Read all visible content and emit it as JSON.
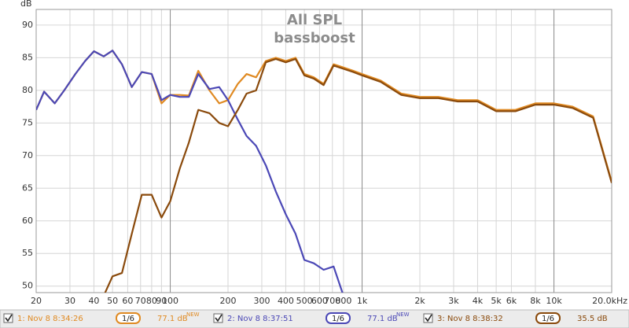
{
  "chart_data": {
    "type": "line",
    "title": "All SPL",
    "subtitle": "bassboost",
    "y_label": "dB",
    "x_scale": "log",
    "grid": true,
    "xlim": [
      20,
      20000
    ],
    "ylim": [
      49,
      92.4
    ],
    "xticks": [
      20,
      30,
      40,
      50,
      60,
      70,
      80,
      90,
      100,
      200,
      300,
      400,
      500,
      600,
      700,
      800,
      {
        "value": 1000,
        "label": "1k"
      },
      {
        "value": 2000,
        "label": "2k"
      },
      {
        "value": 3000,
        "label": "3k"
      },
      {
        "value": 4000,
        "label": "4k"
      },
      {
        "value": 5000,
        "label": "5k"
      },
      {
        "value": 6000,
        "label": "6k"
      },
      {
        "value": 8000,
        "label": "8k"
      },
      {
        "value": 10000,
        "label": "10k"
      },
      {
        "value": 20000,
        "label": "20.0kHz"
      }
    ],
    "yticks": [
      50,
      55,
      60,
      65,
      70,
      75,
      80,
      85,
      90
    ],
    "x": [
      20,
      22,
      25,
      28,
      32,
      36,
      40,
      45,
      50,
      56,
      63,
      71,
      80,
      90,
      100,
      112,
      125,
      140,
      160,
      180,
      200,
      225,
      250,
      280,
      315,
      355,
      400,
      450,
      500,
      560,
      630,
      710,
      800,
      900,
      1000,
      1250,
      1600,
      2000,
      2500,
      3150,
      4000,
      5000,
      6300,
      8000,
      10000,
      12500,
      16000,
      20000
    ],
    "series": [
      {
        "name": "1: Nov 8 8:34:26",
        "smoothing": "1/6",
        "level": "77.1 dB",
        "badge": "NEW",
        "color": "#e08a22",
        "values": [
          77,
          79.8,
          78,
          80,
          82.5,
          84.5,
          86,
          85.2,
          86.1,
          84,
          80.5,
          82.8,
          82.5,
          78,
          79.3,
          79.3,
          79.2,
          83,
          80,
          78,
          78.5,
          81,
          82.5,
          82,
          84.5,
          85,
          84.5,
          85,
          82.5,
          82,
          81,
          84,
          83.5,
          83,
          82.5,
          81.5,
          79.5,
          79,
          79,
          78.5,
          78.5,
          77,
          77,
          78,
          78,
          77.5,
          76,
          66
        ]
      },
      {
        "name": "2: Nov 8 8:37:51",
        "smoothing": "1/6",
        "level": "77.1 dB",
        "badge": "NEW",
        "color": "#4b48b6",
        "values": [
          77,
          79.8,
          78,
          80,
          82.5,
          84.5,
          86,
          85.2,
          86.1,
          84,
          80.5,
          82.8,
          82.5,
          78.5,
          79.3,
          79,
          79,
          82.5,
          80.2,
          80.5,
          78.5,
          75.5,
          73,
          71.5,
          68.5,
          64.5,
          61,
          58,
          54,
          53.5,
          52.5,
          53,
          48.5,
          null,
          null,
          null,
          null,
          null,
          null,
          null,
          null,
          null,
          null,
          null,
          null,
          null,
          null,
          null
        ]
      },
      {
        "name": "3: Nov 8 8:38:32",
        "smoothing": "1/6",
        "level": "35.5 dB",
        "color": "#8a4a0c",
        "values": [
          null,
          null,
          null,
          null,
          null,
          null,
          null,
          48.5,
          51.5,
          52,
          58,
          64,
          64,
          60.5,
          63,
          68,
          72,
          77,
          76.5,
          75,
          74.5,
          77,
          79.5,
          80,
          84.3,
          84.8,
          84.3,
          84.8,
          82.3,
          81.8,
          80.8,
          83.8,
          83.3,
          82.8,
          82.3,
          81.3,
          79.3,
          78.8,
          78.8,
          78.3,
          78.3,
          76.8,
          76.8,
          77.8,
          77.8,
          77.3,
          75.8,
          65.8
        ]
      }
    ]
  }
}
